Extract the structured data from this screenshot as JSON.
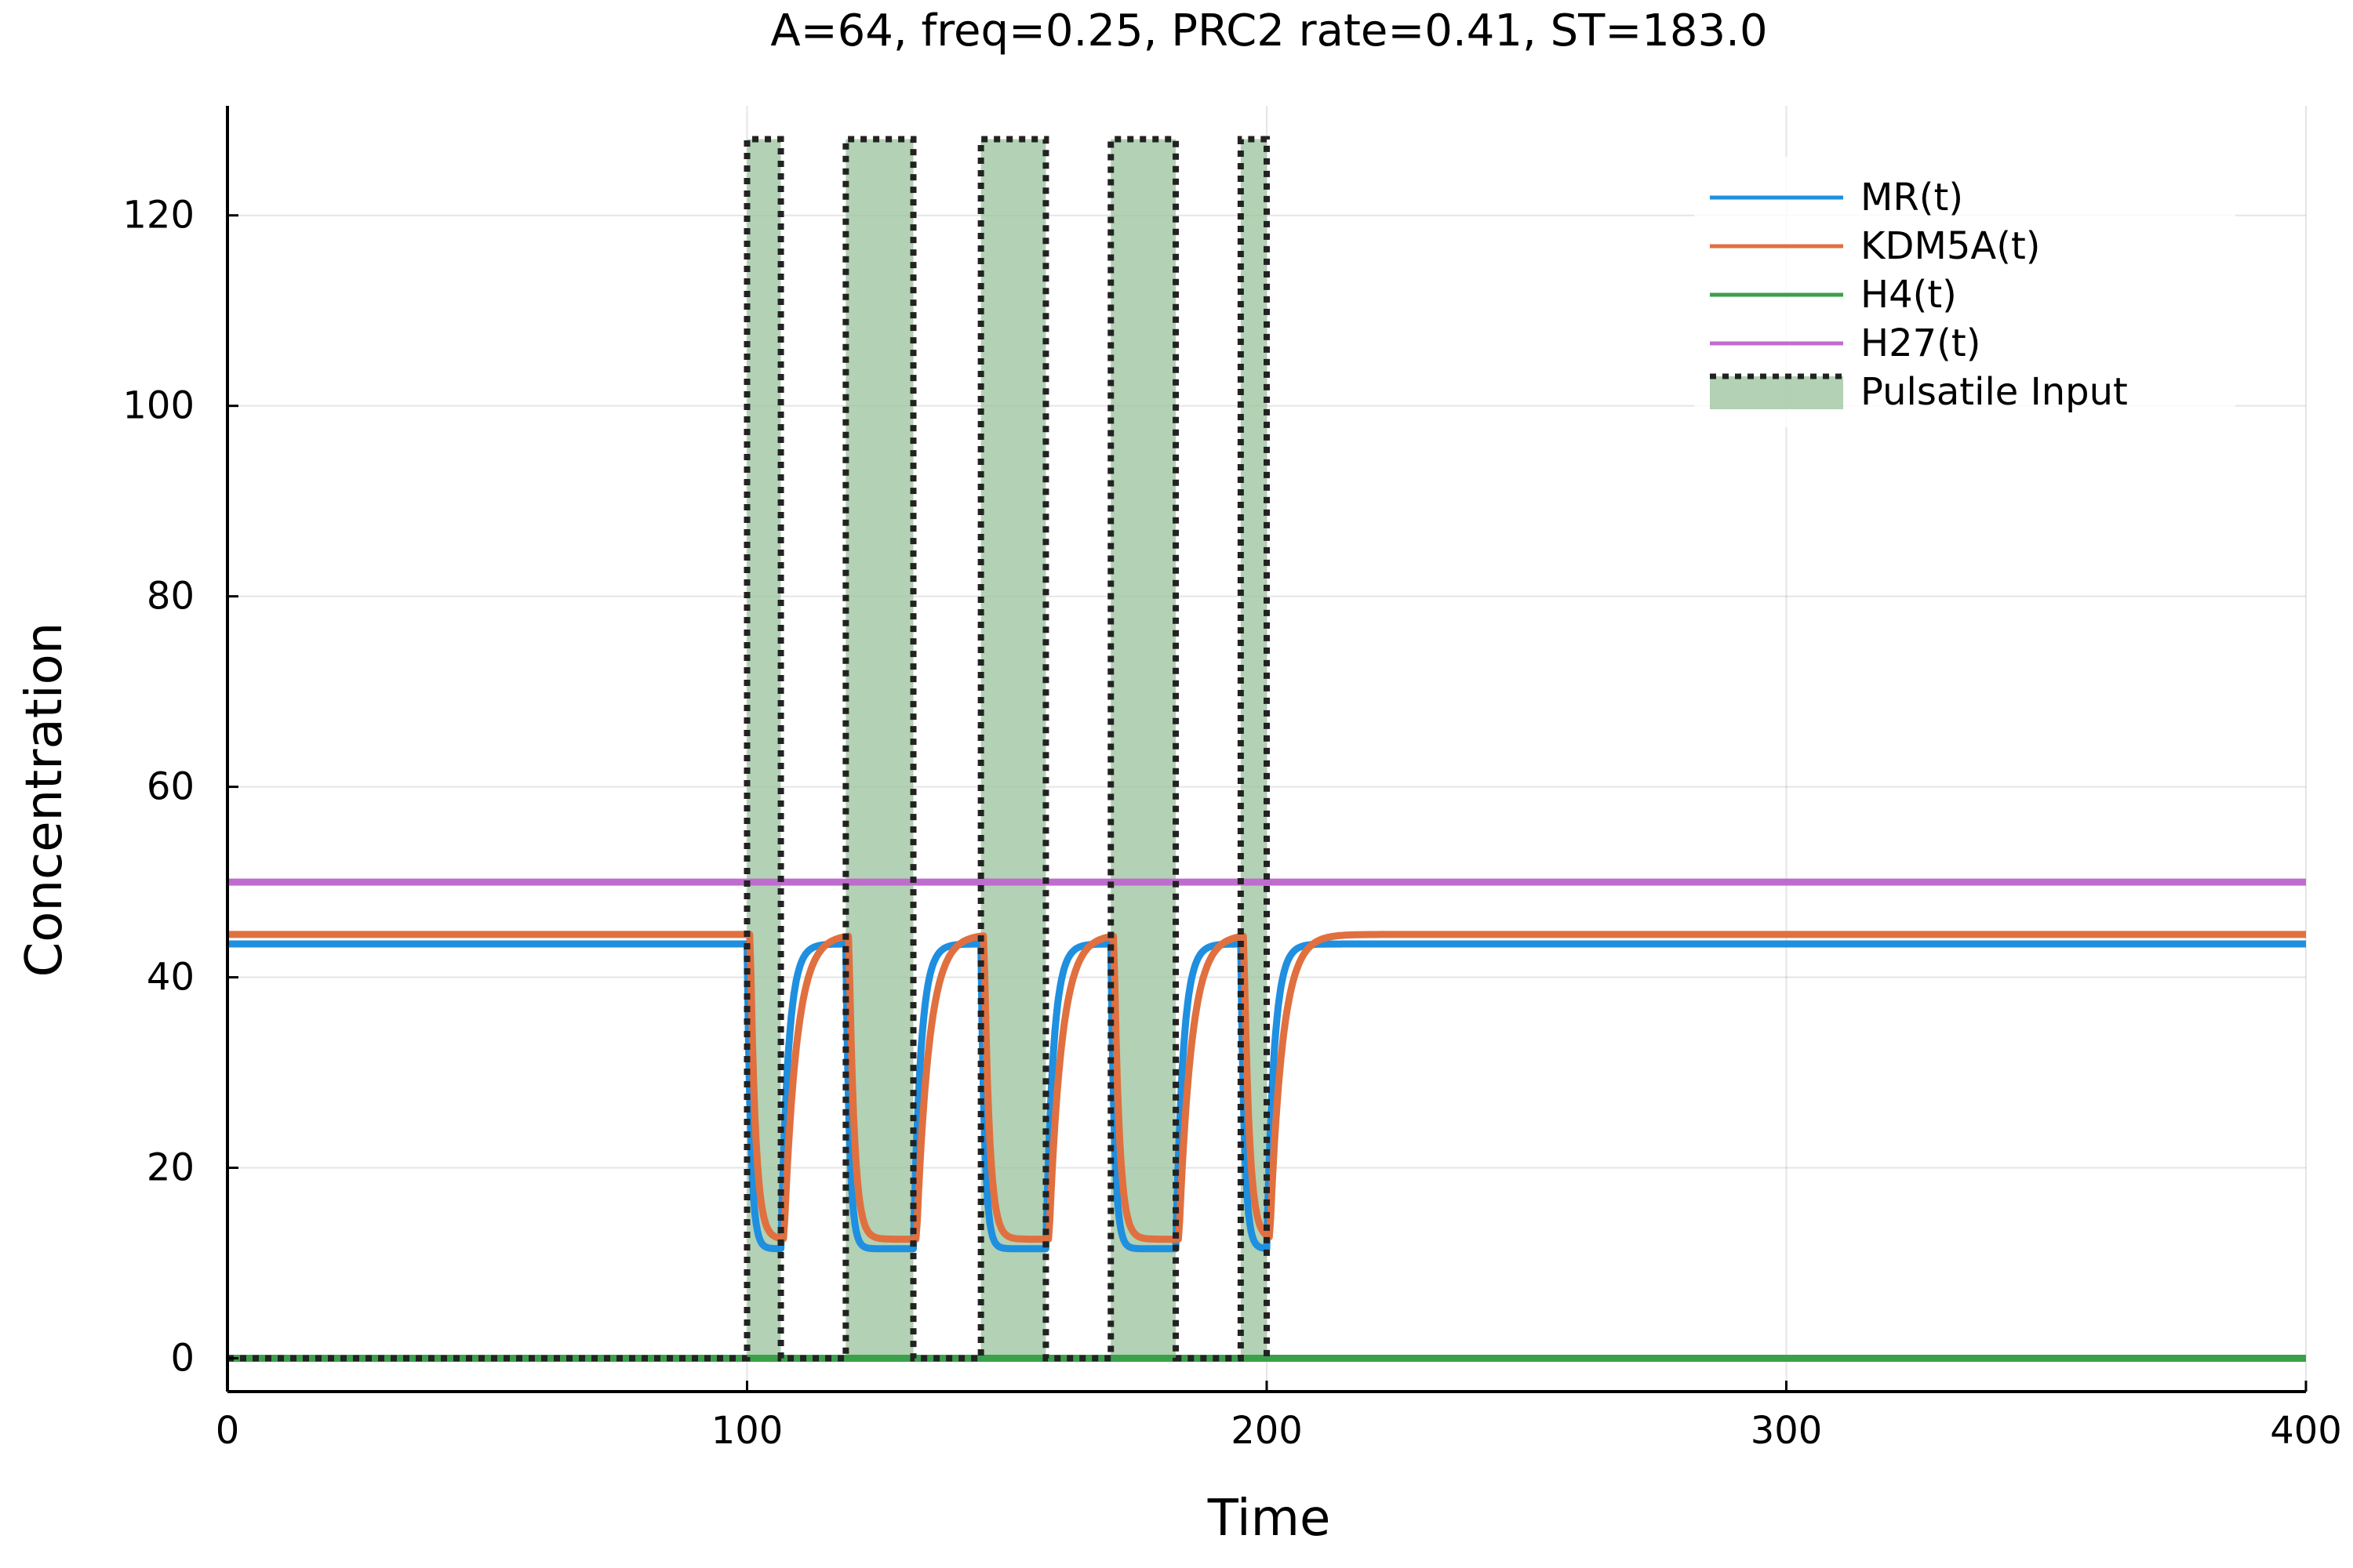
{
  "chart_data": {
    "type": "line",
    "title": "A=64, freq=0.25, PRC2 rate=0.41, ST=183.0",
    "xlabel": "Time",
    "ylabel": "Concentration",
    "xlim": [
      0,
      400
    ],
    "ylim": [
      -3.5,
      131.5
    ],
    "xticks": [
      0,
      100,
      200,
      300,
      400
    ],
    "yticks": [
      0,
      20,
      40,
      60,
      80,
      100,
      120
    ],
    "grid": true,
    "legend_position": "top-right",
    "pulses": [
      {
        "start": 100,
        "end": 106.5,
        "value": 128
      },
      {
        "start": 119,
        "end": 132,
        "value": 128
      },
      {
        "start": 145,
        "end": 157.5,
        "value": 128
      },
      {
        "start": 170,
        "end": 182.5,
        "value": 128
      },
      {
        "start": 195,
        "end": 200,
        "value": 128
      }
    ],
    "series": [
      {
        "name": "MR(t)",
        "color": "#1f8fe0",
        "baseline": 43.5,
        "trough": 11.5,
        "fall_tau": 0.7,
        "rise_tau": 1.4,
        "lag": 0.0
      },
      {
        "name": "KDM5A(t)",
        "color": "#e0703f",
        "baseline": 44.5,
        "trough": 12.5,
        "fall_tau": 1.0,
        "rise_tau": 2.4,
        "lag": 0.6
      },
      {
        "name": "H4(t)",
        "color": "#3ba04a",
        "constant": 0.0
      },
      {
        "name": "H27(t)",
        "color": "#bf6ccf",
        "constant": 50.0
      }
    ],
    "input_series": {
      "name": "Pulsatile Input",
      "fill_color": "#9ac29b",
      "line_color": "#222222"
    }
  }
}
